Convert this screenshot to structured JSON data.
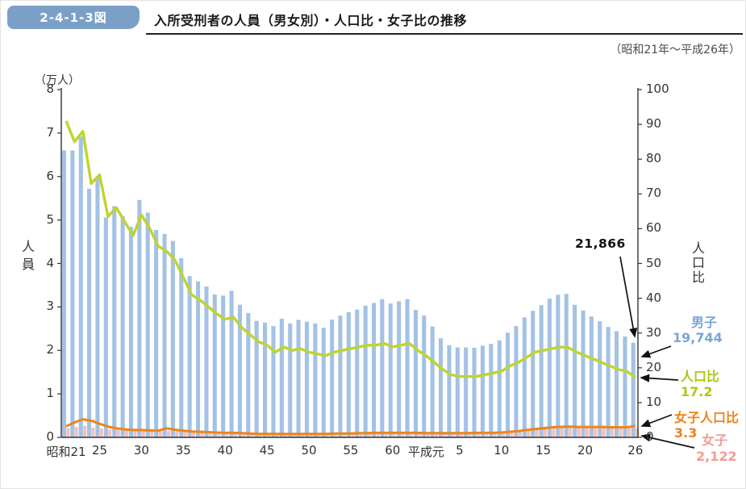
{
  "header": {
    "figure_no": "2-4-1-3図",
    "title": "入所受刑者の人員（男女別）・人口比・女子比の推移",
    "period": "（昭和21年～平成26年）"
  },
  "chart_data": {
    "type": "bar+line",
    "title": "入所受刑者の人員（男女別）・人口比・女子比の推移",
    "period": "昭和21年～平成26年",
    "unit_label": "（万人）",
    "left_axis": {
      "title": "人員",
      "unit": "万人",
      "range": [
        0,
        8
      ],
      "ticks": [
        "8",
        "7",
        "6",
        "5",
        "4",
        "3",
        "2",
        "1",
        "0"
      ]
    },
    "right_axis": {
      "title": "人口比",
      "range": [
        0,
        100
      ],
      "ticks": [
        "100",
        "90",
        "80",
        "70",
        "60",
        "50",
        "40",
        "30",
        "20",
        "10",
        "0"
      ]
    },
    "x_axis": {
      "start_year": "昭和21",
      "end_year": "平成26",
      "ticks": [
        {
          "label": "昭和21",
          "index": 0
        },
        {
          "label": "25",
          "index": 4
        },
        {
          "label": "30",
          "index": 9
        },
        {
          "label": "35",
          "index": 14
        },
        {
          "label": "40",
          "index": 19
        },
        {
          "label": "45",
          "index": 24
        },
        {
          "label": "50",
          "index": 29
        },
        {
          "label": "55",
          "index": 34
        },
        {
          "label": "60",
          "index": 39
        },
        {
          "label": "平成元",
          "index": 43
        },
        {
          "label": "5",
          "index": 47
        },
        {
          "label": "10",
          "index": 52
        },
        {
          "label": "15",
          "index": 57
        },
        {
          "label": "20",
          "index": 62
        },
        {
          "label": "26",
          "index": 68
        }
      ]
    },
    "series": [
      {
        "name": "男子",
        "type": "bar",
        "axis": "left",
        "color": "#a3c2e5",
        "stacked_with_female": true,
        "values": [
          6.39,
          6.36,
          6.65,
          5.5,
          5.77,
          4.88,
          5.15,
          4.93,
          4.69,
          5.3,
          5.02,
          4.63,
          4.53,
          4.38,
          4.0,
          3.6,
          3.49,
          3.37,
          3.2,
          3.17,
          3.28,
          2.97,
          2.78,
          2.61,
          2.57,
          2.49,
          2.66,
          2.55,
          2.63,
          2.59,
          2.55,
          2.45,
          2.63,
          2.72,
          2.8,
          2.85,
          2.94,
          2.99,
          3.08,
          2.98,
          3.03,
          3.08,
          2.83,
          2.71,
          2.46,
          2.19,
          2.03,
          1.98,
          1.98,
          1.97,
          2.01,
          2.05,
          2.12,
          2.29,
          2.42,
          2.6,
          2.73,
          2.84,
          2.97,
          3.05,
          3.06,
          2.82,
          2.69,
          2.55,
          2.44,
          2.32,
          2.22,
          2.11,
          1.97
        ]
      },
      {
        "name": "女子",
        "type": "bar",
        "axis": "left",
        "color": "#f7beba",
        "values": [
          0.21,
          0.24,
          0.27,
          0.22,
          0.2,
          0.18,
          0.17,
          0.16,
          0.15,
          0.16,
          0.15,
          0.14,
          0.15,
          0.14,
          0.12,
          0.11,
          0.1,
          0.1,
          0.09,
          0.09,
          0.09,
          0.08,
          0.08,
          0.07,
          0.07,
          0.07,
          0.07,
          0.07,
          0.07,
          0.07,
          0.07,
          0.07,
          0.08,
          0.08,
          0.08,
          0.09,
          0.09,
          0.1,
          0.1,
          0.1,
          0.1,
          0.1,
          0.1,
          0.09,
          0.09,
          0.09,
          0.09,
          0.09,
          0.09,
          0.09,
          0.1,
          0.1,
          0.11,
          0.12,
          0.14,
          0.16,
          0.18,
          0.2,
          0.22,
          0.23,
          0.24,
          0.23,
          0.23,
          0.23,
          0.23,
          0.22,
          0.22,
          0.21,
          0.21
        ]
      },
      {
        "name": "人口比",
        "type": "line",
        "axis": "right",
        "color": "#bed430",
        "values": [
          91,
          85,
          88,
          73,
          75.5,
          63.5,
          66,
          62,
          58,
          64,
          60,
          55,
          53.5,
          51,
          46,
          41,
          39.5,
          37.5,
          35.5,
          34,
          34.5,
          31.5,
          29.5,
          27.5,
          26.5,
          24.5,
          26,
          25,
          25.5,
          24.5,
          24,
          23.5,
          24.5,
          25,
          25.5,
          26,
          26.5,
          26.5,
          27,
          26,
          26.5,
          27,
          25,
          23.5,
          21.5,
          19.5,
          18,
          17.5,
          17.5,
          17.5,
          18,
          18.5,
          19,
          20.5,
          21.5,
          23,
          24.5,
          25,
          25.5,
          26,
          25.8,
          24.5,
          23.5,
          22.5,
          21.5,
          20.5,
          19.5,
          19,
          17.2
        ]
      },
      {
        "name": "女子人口比",
        "type": "line",
        "axis": "right",
        "color": "#f08418",
        "values": [
          3.2,
          4.3,
          5.2,
          4.8,
          3.9,
          3.1,
          2.6,
          2.3,
          2.1,
          2.1,
          2.0,
          1.9,
          2.6,
          2.2,
          1.9,
          1.7,
          1.6,
          1.5,
          1.4,
          1.3,
          1.3,
          1.2,
          1.1,
          1.0,
          1.0,
          1.0,
          1.0,
          1.0,
          1.0,
          1.0,
          1.0,
          1.0,
          1.1,
          1.1,
          1.1,
          1.2,
          1.2,
          1.3,
          1.3,
          1.3,
          1.3,
          1.3,
          1.3,
          1.2,
          1.2,
          1.2,
          1.2,
          1.2,
          1.2,
          1.3,
          1.3,
          1.3,
          1.4,
          1.6,
          1.8,
          2.1,
          2.4,
          2.6,
          2.9,
          3.0,
          3.1,
          3.0,
          3.0,
          3.0,
          3.0,
          2.9,
          2.9,
          2.9,
          3.3
        ]
      }
    ],
    "annotation": {
      "total_latest": "21,866"
    },
    "legend": [
      {
        "name": "男子",
        "value": "19,744",
        "color": "#7aa5d8"
      },
      {
        "name": "人口比",
        "value": "17.2",
        "color": "#aec717"
      },
      {
        "name": "女子人口比",
        "value": "3.3",
        "color": "#ef8318"
      },
      {
        "name": "女子",
        "value": "2,122",
        "color": "#f59b94"
      }
    ]
  }
}
